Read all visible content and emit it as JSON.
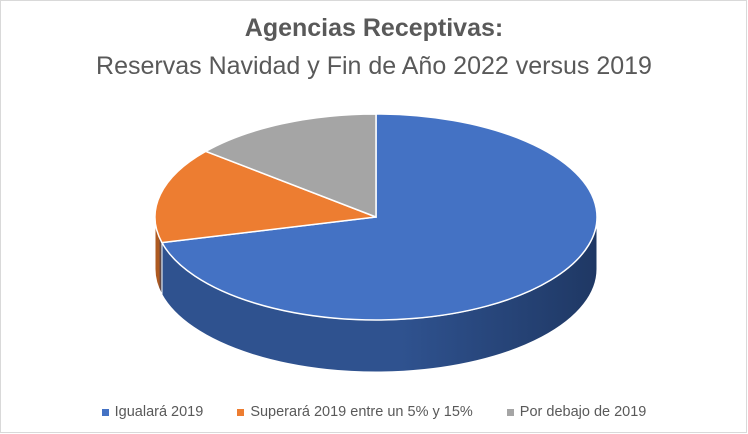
{
  "chart_data": {
    "type": "pie",
    "style": "3d",
    "title": "Agencias Receptivas:",
    "subtitle": "Reservas  Navidad y Fin de Año 2022 versus 2019",
    "legend_position": "bottom",
    "slices": [
      {
        "label": "Igualará 2019",
        "value": 71,
        "color": "#4472c4",
        "side": "#2f528f"
      },
      {
        "label": "Superará 2019 entre un 5% y 15%",
        "value": 15,
        "color": "#ed7d31",
        "side": "#ae5a21"
      },
      {
        "label": "Por debajo de 2019",
        "value": 14,
        "color": "#a5a5a5",
        "side": "#7b7b7b"
      }
    ]
  }
}
